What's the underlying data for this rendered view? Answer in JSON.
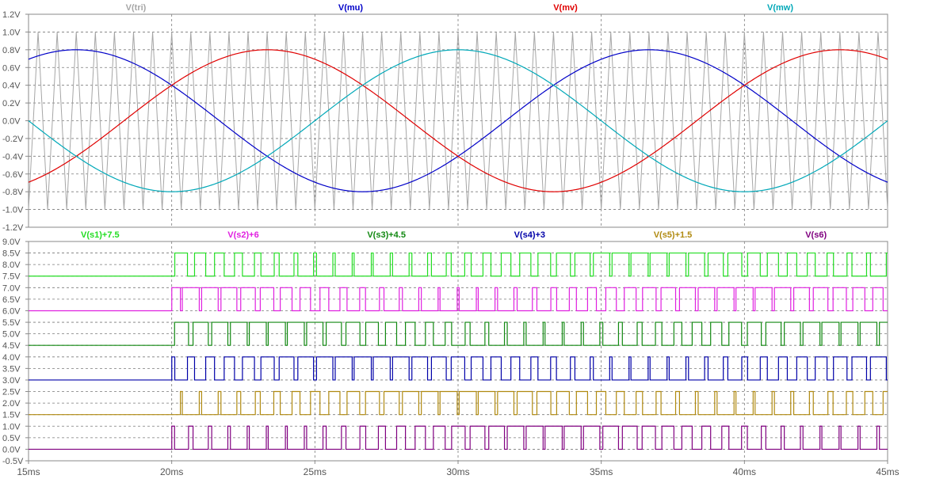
{
  "chart_data": [
    {
      "type": "line",
      "panel": "top",
      "ylim": [
        -1.2,
        1.2
      ],
      "yticks": [
        "1.2V",
        "1.0V",
        "0.8V",
        "0.6V",
        "0.4V",
        "0.2V",
        "0.0V",
        "-0.2V",
        "-0.4V",
        "-0.6V",
        "-0.8V",
        "-1.0V",
        "-1.2V"
      ],
      "ytick_values": [
        1.2,
        1.0,
        0.8,
        0.6,
        0.4,
        0.2,
        0.0,
        -0.2,
        -0.4,
        -0.6,
        -0.8,
        -1.0,
        -1.2
      ],
      "grid": true,
      "series": [
        {
          "name": "V(tri)",
          "color": "#a6a6a6",
          "kind": "triangle",
          "min": -1.0,
          "max": 1.0,
          "frequency_hz": 1500
        },
        {
          "name": "V(mu)",
          "color": "#0000c8",
          "kind": "sine",
          "amplitude": 0.8,
          "frequency_hz": 50,
          "phase_deg": -210
        },
        {
          "name": "V(mv)",
          "color": "#e00000",
          "kind": "sine",
          "amplitude": 0.8,
          "frequency_hz": 50,
          "phase_deg": 30
        },
        {
          "name": "V(mw)",
          "color": "#00a8b8",
          "kind": "sine",
          "amplitude": 0.8,
          "frequency_hz": 50,
          "phase_deg": -90
        }
      ]
    },
    {
      "type": "line",
      "panel": "bottom",
      "ylim": [
        -0.5,
        9.0
      ],
      "yticks": [
        "9.0V",
        "8.5V",
        "8.0V",
        "7.5V",
        "7.0V",
        "6.5V",
        "6.0V",
        "5.5V",
        "5.0V",
        "4.5V",
        "4.0V",
        "3.5V",
        "3.0V",
        "2.5V",
        "2.0V",
        "1.5V",
        "1.0V",
        "0.5V",
        "0.0V",
        "-0.5V"
      ],
      "ytick_values": [
        9.0,
        8.5,
        8.0,
        7.5,
        7.0,
        6.5,
        6.0,
        5.5,
        5.0,
        4.5,
        4.0,
        3.5,
        3.0,
        2.5,
        2.0,
        1.5,
        1.0,
        0.5,
        0.0,
        -0.5
      ],
      "grid": true,
      "switch_start_ms": 20,
      "series": [
        {
          "name": "V(s1)+7.5",
          "color": "#22dd22",
          "offset": 7.5,
          "modulation": "mu",
          "invert": false
        },
        {
          "name": "V(s2)+6",
          "color": "#e020e0",
          "offset": 6.0,
          "modulation": "mw",
          "invert": true
        },
        {
          "name": "V(s3)+4.5",
          "color": "#118811",
          "offset": 4.5,
          "modulation": "mv",
          "invert": false
        },
        {
          "name": "V(s4)+3",
          "color": "#0000a8",
          "offset": 3.0,
          "modulation": "mu",
          "invert": true
        },
        {
          "name": "V(s5)+1.5",
          "color": "#b08a10",
          "offset": 1.5,
          "modulation": "mw",
          "invert": false
        },
        {
          "name": "V(s6)",
          "color": "#800080",
          "offset": 0.0,
          "modulation": "mv",
          "invert": true
        }
      ]
    }
  ],
  "x_axis": {
    "range_ms": [
      15,
      45
    ],
    "ticks": [
      {
        "value": 15,
        "label": "15ms"
      },
      {
        "value": 20,
        "label": "20ms"
      },
      {
        "value": 25,
        "label": "25ms"
      },
      {
        "value": 30,
        "label": "30ms"
      },
      {
        "value": 35,
        "label": "35ms"
      },
      {
        "value": 40,
        "label": "40ms"
      },
      {
        "value": 45,
        "label": "45ms"
      }
    ]
  }
}
